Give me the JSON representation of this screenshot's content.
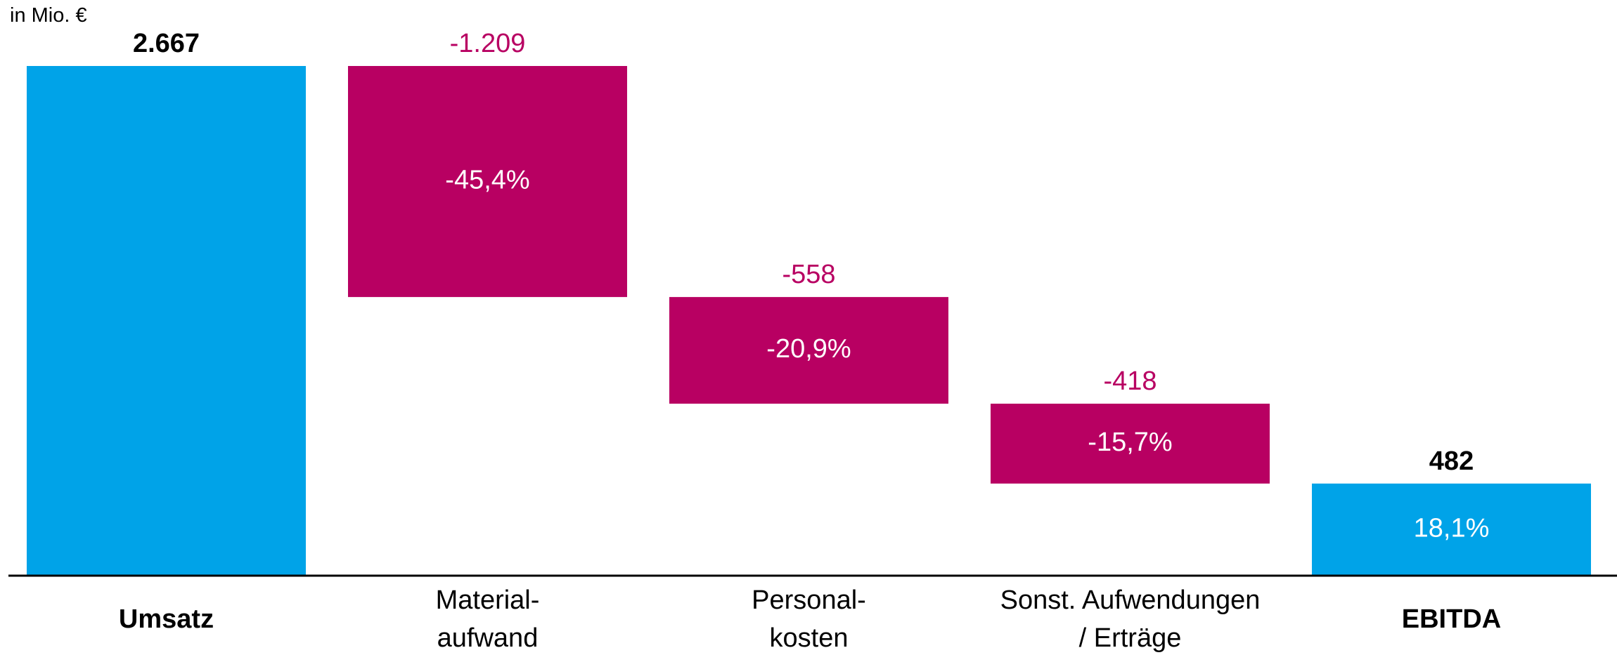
{
  "chart_data": {
    "type": "waterfall",
    "unit": "in Mio. €",
    "categories": [
      "Umsatz",
      "Material-\naufwand",
      "Personal-\nkosten",
      "Sonst. Aufwendungen\n/ Erträge",
      "EBITDA"
    ],
    "values": [
      2667,
      -1209,
      -558,
      -418,
      482
    ],
    "value_labels": [
      "2.667",
      "-1.209",
      "-558",
      "-418",
      "482"
    ],
    "shares": [
      null,
      -45.4,
      -20.9,
      -15.7,
      18.1
    ],
    "share_labels": [
      null,
      "-45,4%",
      "-20,9%",
      "-15,7%",
      "18,1%"
    ],
    "bar_kinds": [
      "total",
      "delta",
      "delta",
      "delta",
      "total"
    ],
    "total_color": "#00a3e8",
    "delta_color": "#b80062"
  }
}
